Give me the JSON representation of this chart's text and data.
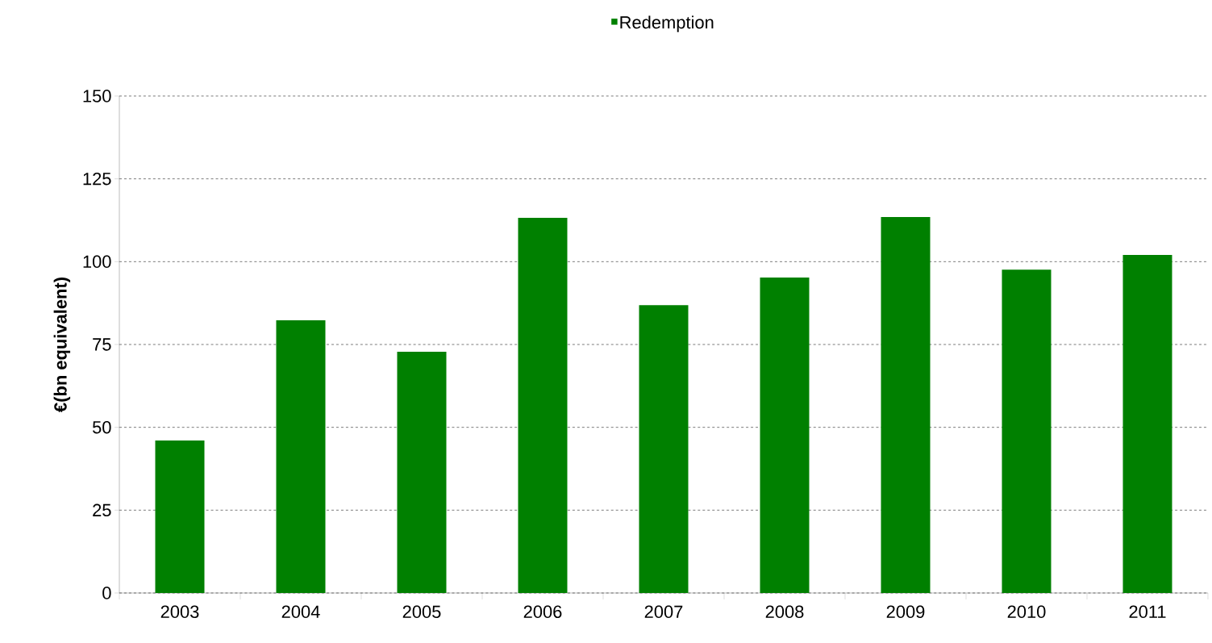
{
  "chart_data": {
    "type": "bar",
    "ylabel": "€(bn equivalent)",
    "categories": [
      "2003",
      "2004",
      "2005",
      "2006",
      "2007",
      "2008",
      "2009",
      "2010",
      "2011"
    ],
    "series": [
      {
        "name": "Redemption",
        "color": "#008000",
        "values": [
          46,
          82.3,
          72.8,
          113.2,
          86.9,
          95.2,
          113.5,
          97.6,
          102
        ]
      }
    ],
    "ylim": [
      0,
      150
    ],
    "yticks": [
      0,
      25,
      50,
      75,
      100,
      125,
      150
    ],
    "grid": "y",
    "legend": "top"
  }
}
